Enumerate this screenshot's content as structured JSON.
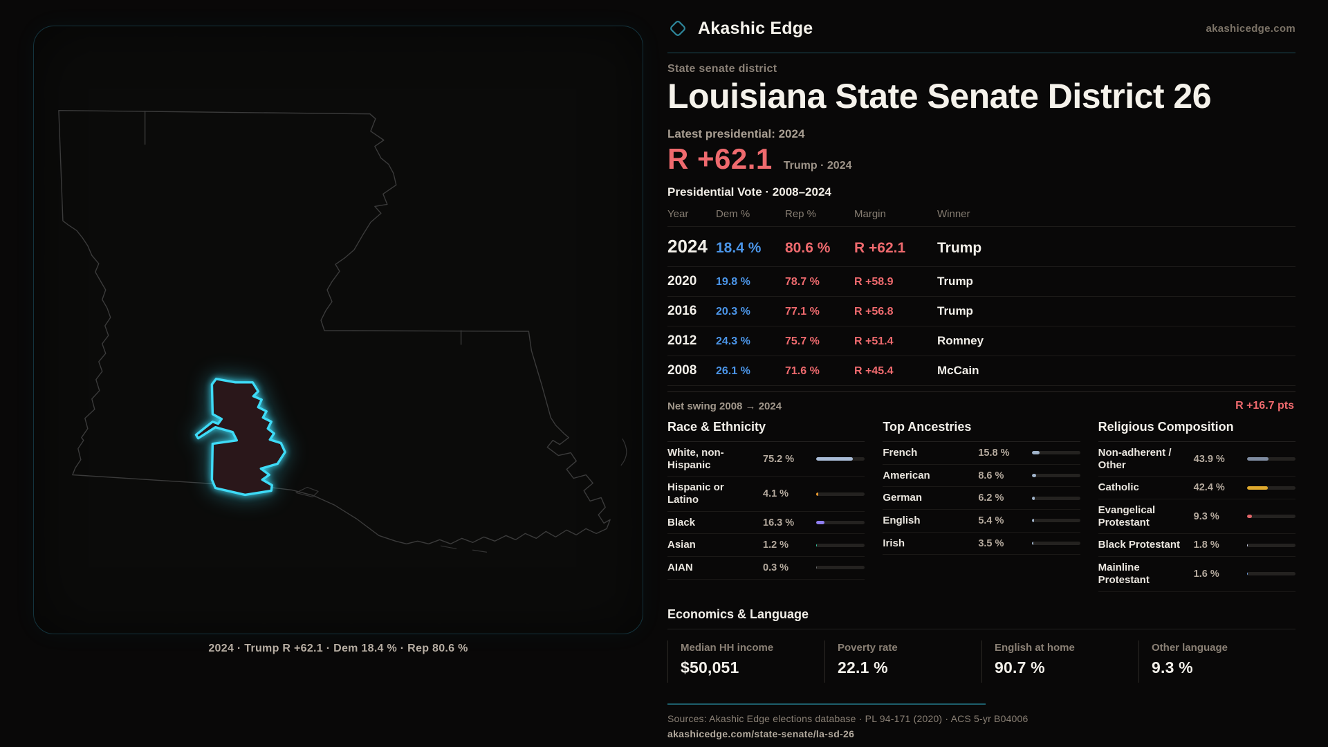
{
  "colors": {
    "accent": "#3edbf7",
    "dem_blue": "#4b95e8",
    "rep_red": "#ef6a6e",
    "catholic_gold": "#dfa92d",
    "teal_divider": "#1b4b57"
  },
  "brand": {
    "name": "Akashic Edge",
    "domain": "akashicedge.com"
  },
  "header": {
    "eyebrow": "State senate district",
    "title": "Louisiana State Senate District 26"
  },
  "latest": {
    "label": "Latest presidential: 2024",
    "margin": "R +62.1",
    "detail": "Trump · 2024"
  },
  "vote_table": {
    "title": "Presidential Vote · 2008–2024",
    "columns": {
      "year": "Year",
      "dem": "Dem %",
      "rep": "Rep %",
      "margin": "Margin",
      "winner": "Winner"
    },
    "rows": [
      {
        "year": "2024",
        "dem": "18.4 %",
        "rep": "80.6 %",
        "margin": "R +62.1",
        "winner": "Trump"
      },
      {
        "year": "2020",
        "dem": "19.8 %",
        "rep": "78.7 %",
        "margin": "R +58.9",
        "winner": "Trump"
      },
      {
        "year": "2016",
        "dem": "20.3 %",
        "rep": "77.1 %",
        "margin": "R +56.8",
        "winner": "Trump"
      },
      {
        "year": "2012",
        "dem": "24.3 %",
        "rep": "75.7 %",
        "margin": "R +51.4",
        "winner": "Romney"
      },
      {
        "year": "2008",
        "dem": "26.1 %",
        "rep": "71.6 %",
        "margin": "R +45.4",
        "winner": "McCain"
      }
    ]
  },
  "net_swing": {
    "label": "Net swing 2008 → 2024",
    "value": "R +16.7 pts"
  },
  "demographics": {
    "race": {
      "title": "Race & Ethnicity",
      "items": [
        {
          "label": "White, non-Hispanic",
          "value": "75.2 %",
          "pct": 75.2,
          "color": "#a9bcd6"
        },
        {
          "label": "Hispanic or Latino",
          "value": "4.1 %",
          "pct": 4.1,
          "color": "#e8992e"
        },
        {
          "label": "Black",
          "value": "16.3 %",
          "pct": 16.3,
          "color": "#8f7ef0"
        },
        {
          "label": "Asian",
          "value": "1.2 %",
          "pct": 1.2,
          "color": "#35c9a2"
        },
        {
          "label": "AIAN",
          "value": "0.3 %",
          "pct": 0.3,
          "color": "#6a6a6a"
        }
      ]
    },
    "ancestry": {
      "title": "Top Ancestries",
      "items": [
        {
          "label": "French",
          "value": "15.8 %",
          "pct": 15.8,
          "color": "#9fb2c9"
        },
        {
          "label": "American",
          "value": "8.6 %",
          "pct": 8.6,
          "color": "#9fb2c9"
        },
        {
          "label": "German",
          "value": "6.2 %",
          "pct": 6.2,
          "color": "#9fb2c9"
        },
        {
          "label": "English",
          "value": "5.4 %",
          "pct": 5.4,
          "color": "#9fb2c9"
        },
        {
          "label": "Irish",
          "value": "3.5 %",
          "pct": 3.5,
          "color": "#9fb2c9"
        }
      ]
    },
    "religion": {
      "title": "Religious Composition",
      "items": [
        {
          "label": "Non-adherent / Other",
          "value": "43.9 %",
          "pct": 43.9,
          "color": "#7e8ba0"
        },
        {
          "label": "Catholic",
          "value": "42.4 %",
          "pct": 42.4,
          "color": "#dfa92d"
        },
        {
          "label": "Evangelical Protestant",
          "value": "9.3 %",
          "pct": 9.3,
          "color": "#e06568"
        },
        {
          "label": "Black Protestant",
          "value": "1.8 %",
          "pct": 1.8,
          "color": "#cfd2e8"
        },
        {
          "label": "Mainline Protestant",
          "value": "1.6 %",
          "pct": 1.6,
          "color": "#6f9fe0"
        }
      ]
    }
  },
  "economics": {
    "title": "Economics & Language",
    "stats": [
      {
        "label": "Median HH income",
        "value": "$50,051"
      },
      {
        "label": "Poverty rate",
        "value": "22.1 %"
      },
      {
        "label": "English at home",
        "value": "90.7 %"
      },
      {
        "label": "Other language",
        "value": "9.3 %"
      }
    ]
  },
  "map": {
    "caption": "2024 · Trump R +62.1 · Dem 18.4 % · Rep 80.6 %"
  },
  "footer": {
    "sources": "Sources: Akashic Edge elections database · PL 94-171 (2020) · ACS 5-yr B04006",
    "permalink": "akashicedge.com/state-senate/la-sd-26"
  }
}
